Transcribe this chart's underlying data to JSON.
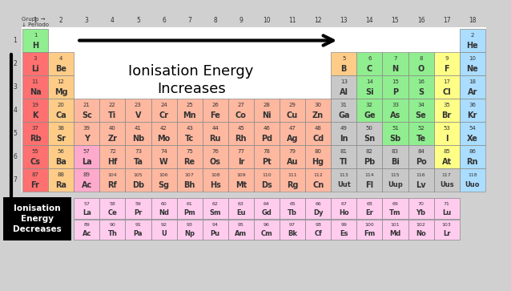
{
  "elements": [
    {
      "num": 1,
      "sym": "H",
      "period": 1,
      "group": 1,
      "color": "#90ee90"
    },
    {
      "num": 2,
      "sym": "He",
      "period": 1,
      "group": 18,
      "color": "#aaddff"
    },
    {
      "num": 3,
      "sym": "Li",
      "period": 2,
      "group": 1,
      "color": "#ff7070"
    },
    {
      "num": 4,
      "sym": "Be",
      "period": 2,
      "group": 2,
      "color": "#ffcc88"
    },
    {
      "num": 5,
      "sym": "B",
      "period": 2,
      "group": 13,
      "color": "#ffcc88"
    },
    {
      "num": 6,
      "sym": "C",
      "period": 2,
      "group": 14,
      "color": "#90ee90"
    },
    {
      "num": 7,
      "sym": "N",
      "period": 2,
      "group": 15,
      "color": "#90ee90"
    },
    {
      "num": 8,
      "sym": "O",
      "period": 2,
      "group": 16,
      "color": "#90ee90"
    },
    {
      "num": 9,
      "sym": "F",
      "period": 2,
      "group": 17,
      "color": "#ffff88"
    },
    {
      "num": 10,
      "sym": "Ne",
      "period": 2,
      "group": 18,
      "color": "#aaddff"
    },
    {
      "num": 11,
      "sym": "Na",
      "period": 3,
      "group": 1,
      "color": "#ff7070"
    },
    {
      "num": 12,
      "sym": "Mg",
      "period": 3,
      "group": 2,
      "color": "#ffcc88"
    },
    {
      "num": 13,
      "sym": "Al",
      "period": 3,
      "group": 13,
      "color": "#c8c8c8"
    },
    {
      "num": 14,
      "sym": "Si",
      "period": 3,
      "group": 14,
      "color": "#90ee90"
    },
    {
      "num": 15,
      "sym": "P",
      "period": 3,
      "group": 15,
      "color": "#90ee90"
    },
    {
      "num": 16,
      "sym": "S",
      "period": 3,
      "group": 16,
      "color": "#90ee90"
    },
    {
      "num": 17,
      "sym": "Cl",
      "period": 3,
      "group": 17,
      "color": "#ffff88"
    },
    {
      "num": 18,
      "sym": "Ar",
      "period": 3,
      "group": 18,
      "color": "#aaddff"
    },
    {
      "num": 19,
      "sym": "K",
      "period": 4,
      "group": 1,
      "color": "#ff7070"
    },
    {
      "num": 20,
      "sym": "Ca",
      "period": 4,
      "group": 2,
      "color": "#ffcc88"
    },
    {
      "num": 21,
      "sym": "Sc",
      "period": 4,
      "group": 3,
      "color": "#ffb8a0"
    },
    {
      "num": 22,
      "sym": "Ti",
      "period": 4,
      "group": 4,
      "color": "#ffb8a0"
    },
    {
      "num": 23,
      "sym": "V",
      "period": 4,
      "group": 5,
      "color": "#ffb8a0"
    },
    {
      "num": 24,
      "sym": "Cr",
      "period": 4,
      "group": 6,
      "color": "#ffb8a0"
    },
    {
      "num": 25,
      "sym": "Mn",
      "period": 4,
      "group": 7,
      "color": "#ffb8a0"
    },
    {
      "num": 26,
      "sym": "Fe",
      "period": 4,
      "group": 8,
      "color": "#ffb8a0"
    },
    {
      "num": 27,
      "sym": "Co",
      "period": 4,
      "group": 9,
      "color": "#ffb8a0"
    },
    {
      "num": 28,
      "sym": "Ni",
      "period": 4,
      "group": 10,
      "color": "#ffb8a0"
    },
    {
      "num": 29,
      "sym": "Cu",
      "period": 4,
      "group": 11,
      "color": "#ffb8a0"
    },
    {
      "num": 30,
      "sym": "Zn",
      "period": 4,
      "group": 12,
      "color": "#ffb8a0"
    },
    {
      "num": 31,
      "sym": "Ga",
      "period": 4,
      "group": 13,
      "color": "#c8c8c8"
    },
    {
      "num": 32,
      "sym": "Ge",
      "period": 4,
      "group": 14,
      "color": "#90ee90"
    },
    {
      "num": 33,
      "sym": "As",
      "period": 4,
      "group": 15,
      "color": "#90ee90"
    },
    {
      "num": 34,
      "sym": "Se",
      "period": 4,
      "group": 16,
      "color": "#90ee90"
    },
    {
      "num": 35,
      "sym": "Br",
      "period": 4,
      "group": 17,
      "color": "#ffff88"
    },
    {
      "num": 36,
      "sym": "Kr",
      "period": 4,
      "group": 18,
      "color": "#aaddff"
    },
    {
      "num": 37,
      "sym": "Rb",
      "period": 5,
      "group": 1,
      "color": "#ff7070"
    },
    {
      "num": 38,
      "sym": "Sr",
      "period": 5,
      "group": 2,
      "color": "#ffcc88"
    },
    {
      "num": 39,
      "sym": "Y",
      "period": 5,
      "group": 3,
      "color": "#ffb8a0"
    },
    {
      "num": 40,
      "sym": "Zr",
      "period": 5,
      "group": 4,
      "color": "#ffb8a0"
    },
    {
      "num": 41,
      "sym": "Nb",
      "period": 5,
      "group": 5,
      "color": "#ffb8a0"
    },
    {
      "num": 42,
      "sym": "Mo",
      "period": 5,
      "group": 6,
      "color": "#ffb8a0"
    },
    {
      "num": 43,
      "sym": "Tc",
      "period": 5,
      "group": 7,
      "color": "#ffb8a0"
    },
    {
      "num": 44,
      "sym": "Ru",
      "period": 5,
      "group": 8,
      "color": "#ffb8a0"
    },
    {
      "num": 45,
      "sym": "Rh",
      "period": 5,
      "group": 9,
      "color": "#ffb8a0"
    },
    {
      "num": 46,
      "sym": "Pd",
      "period": 5,
      "group": 10,
      "color": "#ffb8a0"
    },
    {
      "num": 47,
      "sym": "Ag",
      "period": 5,
      "group": 11,
      "color": "#ffb8a0"
    },
    {
      "num": 48,
      "sym": "Cd",
      "period": 5,
      "group": 12,
      "color": "#ffb8a0"
    },
    {
      "num": 49,
      "sym": "In",
      "period": 5,
      "group": 13,
      "color": "#c8c8c8"
    },
    {
      "num": 50,
      "sym": "Sn",
      "period": 5,
      "group": 14,
      "color": "#c8c8c8"
    },
    {
      "num": 51,
      "sym": "Sb",
      "period": 5,
      "group": 15,
      "color": "#90ee90"
    },
    {
      "num": 52,
      "sym": "Te",
      "period": 5,
      "group": 16,
      "color": "#90ee90"
    },
    {
      "num": 53,
      "sym": "I",
      "period": 5,
      "group": 17,
      "color": "#ffff88"
    },
    {
      "num": 54,
      "sym": "Xe",
      "period": 5,
      "group": 18,
      "color": "#aaddff"
    },
    {
      "num": 55,
      "sym": "Cs",
      "period": 6,
      "group": 1,
      "color": "#ff7070"
    },
    {
      "num": 56,
      "sym": "Ba",
      "period": 6,
      "group": 2,
      "color": "#ffcc88"
    },
    {
      "num": 57,
      "sym": "La",
      "period": 6,
      "group": 3,
      "color": "#ffaacc"
    },
    {
      "num": 72,
      "sym": "Hf",
      "period": 6,
      "group": 4,
      "color": "#ffb8a0"
    },
    {
      "num": 73,
      "sym": "Ta",
      "period": 6,
      "group": 5,
      "color": "#ffb8a0"
    },
    {
      "num": 74,
      "sym": "W",
      "period": 6,
      "group": 6,
      "color": "#ffb8a0"
    },
    {
      "num": 75,
      "sym": "Re",
      "period": 6,
      "group": 7,
      "color": "#ffb8a0"
    },
    {
      "num": 76,
      "sym": "Os",
      "period": 6,
      "group": 8,
      "color": "#ffb8a0"
    },
    {
      "num": 77,
      "sym": "Ir",
      "period": 6,
      "group": 9,
      "color": "#ffb8a0"
    },
    {
      "num": 78,
      "sym": "Pt",
      "period": 6,
      "group": 10,
      "color": "#ffb8a0"
    },
    {
      "num": 79,
      "sym": "Au",
      "period": 6,
      "group": 11,
      "color": "#ffb8a0"
    },
    {
      "num": 80,
      "sym": "Hg",
      "period": 6,
      "group": 12,
      "color": "#ffb8a0"
    },
    {
      "num": 81,
      "sym": "Tl",
      "period": 6,
      "group": 13,
      "color": "#c8c8c8"
    },
    {
      "num": 82,
      "sym": "Pb",
      "period": 6,
      "group": 14,
      "color": "#c8c8c8"
    },
    {
      "num": 83,
      "sym": "Bi",
      "period": 6,
      "group": 15,
      "color": "#c8c8c8"
    },
    {
      "num": 84,
      "sym": "Po",
      "period": 6,
      "group": 16,
      "color": "#c8c8c8"
    },
    {
      "num": 85,
      "sym": "At",
      "period": 6,
      "group": 17,
      "color": "#ffff88"
    },
    {
      "num": 86,
      "sym": "Rn",
      "period": 6,
      "group": 18,
      "color": "#aaddff"
    },
    {
      "num": 87,
      "sym": "Fr",
      "period": 7,
      "group": 1,
      "color": "#ff7070"
    },
    {
      "num": 88,
      "sym": "Ra",
      "period": 7,
      "group": 2,
      "color": "#ffcc88"
    },
    {
      "num": 89,
      "sym": "Ac",
      "period": 7,
      "group": 3,
      "color": "#ffaacc"
    },
    {
      "num": 104,
      "sym": "Rf",
      "period": 7,
      "group": 4,
      "color": "#ffb8a0"
    },
    {
      "num": 105,
      "sym": "Db",
      "period": 7,
      "group": 5,
      "color": "#ffb8a0"
    },
    {
      "num": 106,
      "sym": "Sg",
      "period": 7,
      "group": 6,
      "color": "#ffb8a0"
    },
    {
      "num": 107,
      "sym": "Bh",
      "period": 7,
      "group": 7,
      "color": "#ffb8a0"
    },
    {
      "num": 108,
      "sym": "Hs",
      "period": 7,
      "group": 8,
      "color": "#ffb8a0"
    },
    {
      "num": 109,
      "sym": "Mt",
      "period": 7,
      "group": 9,
      "color": "#ffb8a0"
    },
    {
      "num": 110,
      "sym": "Ds",
      "period": 7,
      "group": 10,
      "color": "#ffb8a0"
    },
    {
      "num": 111,
      "sym": "Rg",
      "period": 7,
      "group": 11,
      "color": "#ffb8a0"
    },
    {
      "num": 112,
      "sym": "Cn",
      "period": 7,
      "group": 12,
      "color": "#ffb8a0"
    },
    {
      "num": 113,
      "sym": "Uut",
      "period": 7,
      "group": 13,
      "color": "#c8c8c8"
    },
    {
      "num": 114,
      "sym": "Fl",
      "period": 7,
      "group": 14,
      "color": "#c8c8c8"
    },
    {
      "num": 115,
      "sym": "Uup",
      "period": 7,
      "group": 15,
      "color": "#c8c8c8"
    },
    {
      "num": 116,
      "sym": "Lv",
      "period": 7,
      "group": 16,
      "color": "#c8c8c8"
    },
    {
      "num": 117,
      "sym": "Uus",
      "period": 7,
      "group": 17,
      "color": "#c8c8c8"
    },
    {
      "num": 118,
      "sym": "Uuo",
      "period": 7,
      "group": 18,
      "color": "#aaddff"
    }
  ],
  "lanthanides": [
    {
      "num": 57,
      "sym": "La",
      "col": 0
    },
    {
      "num": 58,
      "sym": "Ce",
      "col": 1
    },
    {
      "num": 59,
      "sym": "Pr",
      "col": 2
    },
    {
      "num": 60,
      "sym": "Nd",
      "col": 3
    },
    {
      "num": 61,
      "sym": "Pm",
      "col": 4
    },
    {
      "num": 62,
      "sym": "Sm",
      "col": 5
    },
    {
      "num": 63,
      "sym": "Eu",
      "col": 6
    },
    {
      "num": 64,
      "sym": "Gd",
      "col": 7
    },
    {
      "num": 65,
      "sym": "Tb",
      "col": 8
    },
    {
      "num": 66,
      "sym": "Dy",
      "col": 9
    },
    {
      "num": 67,
      "sym": "Ho",
      "col": 10
    },
    {
      "num": 68,
      "sym": "Er",
      "col": 11
    },
    {
      "num": 69,
      "sym": "Tm",
      "col": 12
    },
    {
      "num": 70,
      "sym": "Yb",
      "col": 13
    },
    {
      "num": 71,
      "sym": "Lu",
      "col": 14
    }
  ],
  "actinides": [
    {
      "num": 89,
      "sym": "Ac",
      "col": 0
    },
    {
      "num": 90,
      "sym": "Th",
      "col": 1
    },
    {
      "num": 91,
      "sym": "Pa",
      "col": 2
    },
    {
      "num": 92,
      "sym": "U",
      "col": 3
    },
    {
      "num": 93,
      "sym": "Np",
      "col": 4
    },
    {
      "num": 94,
      "sym": "Pu",
      "col": 5
    },
    {
      "num": 95,
      "sym": "Am",
      "col": 6
    },
    {
      "num": 96,
      "sym": "Cm",
      "col": 7
    },
    {
      "num": 97,
      "sym": "Bk",
      "col": 8
    },
    {
      "num": 98,
      "sym": "Cf",
      "col": 9
    },
    {
      "num": 99,
      "sym": "Es",
      "col": 10
    },
    {
      "num": 100,
      "sym": "Fm",
      "col": 11
    },
    {
      "num": 101,
      "sym": "Md",
      "col": 12
    },
    {
      "num": 102,
      "sym": "No",
      "col": 13
    },
    {
      "num": 103,
      "sym": "Lr",
      "col": 14
    }
  ],
  "lant_color": "#ffccee",
  "act_color": "#ffccee",
  "bg_color": "#d0d0d0",
  "table_bg": "#ffffff",
  "text_color": "#333333",
  "header_grupo": "Grupo →",
  "header_periodo": "↓ Periodo",
  "title_increases": "Ionisation Energy\nIncreases",
  "title_decreases": "Ionisation\nEnergy\nDecreases"
}
